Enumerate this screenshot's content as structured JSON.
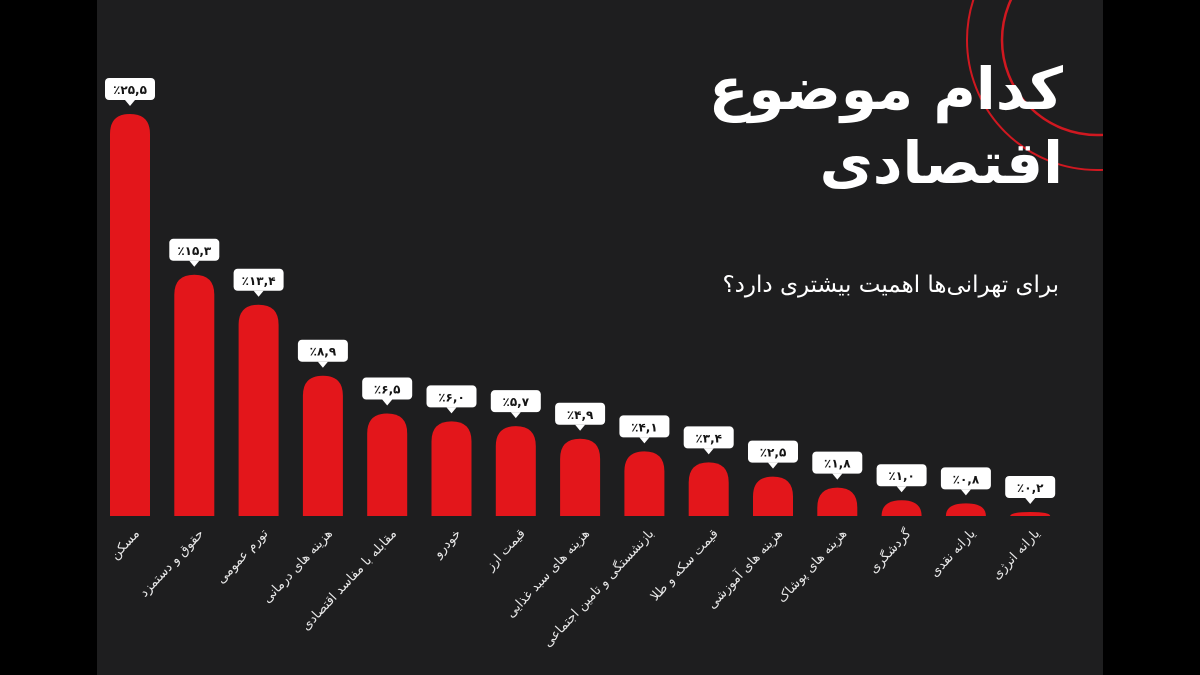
{
  "title": "کدام موضوع اقتصادی",
  "subtitle": "برای تهرانی‌ها اهمیت بیشتری دارد؟",
  "colors": {
    "bar": "#e3161b",
    "background": "#1e1e1f",
    "label_bg": "#ffffff"
  },
  "chart_data": {
    "type": "bar",
    "categories": [
      "مسکن",
      "حقوق و دستمزد",
      "تورم عمومی",
      "هزینه های درمانی",
      "مقابله با مفاسد اقتصادی",
      "خودرو",
      "قیمت ارز",
      "هزینه های سبد غذایی",
      "بازنشستگی و تامین اجتماعی",
      "قیمت سکه و طلا",
      "هزینه های آموزشی",
      "هزینه های پوشاک",
      "گردشگری",
      "یارانه نقدی",
      "یارانه انرژی"
    ],
    "values": [
      25.5,
      15.3,
      13.4,
      8.9,
      6.5,
      6.0,
      5.7,
      4.9,
      4.1,
      3.4,
      2.5,
      1.8,
      1.0,
      0.8,
      0.2
    ],
    "labels": [
      "٪۲۵,۵",
      "٪۱۵,۳",
      "٪۱۳,۴",
      "٪۸,۹",
      "٪۶,۵",
      "٪۶,۰",
      "٪۵,۷",
      "٪۴,۹",
      "٪۴,۱",
      "٪۳,۴",
      "٪۲,۵",
      "٪۱,۸",
      "٪۱,۰",
      "٪۰,۸",
      "٪۰,۲"
    ],
    "grid": false,
    "legend": "none"
  }
}
